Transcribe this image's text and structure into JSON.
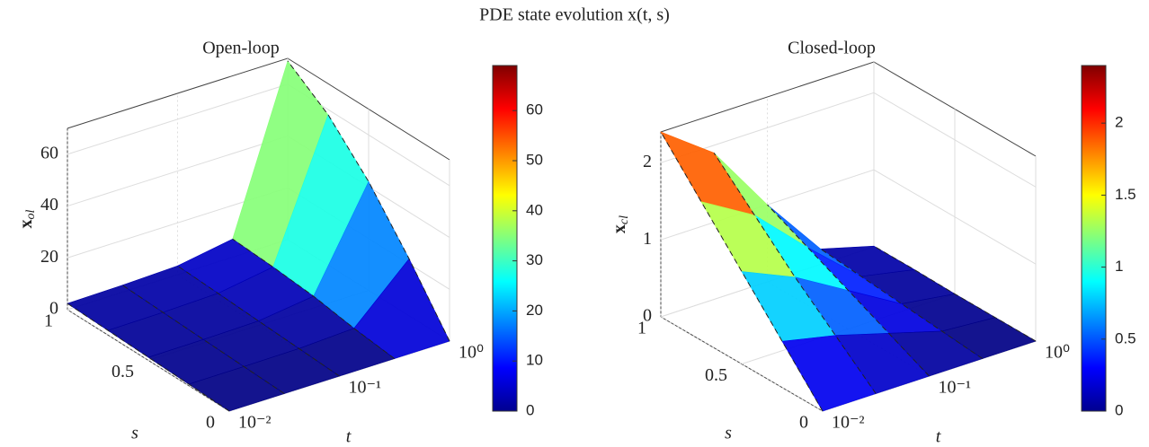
{
  "title": "PDE state evolution x(t, s)",
  "chart_data": [
    {
      "type": "surface",
      "title": "Open-loop",
      "xlabel": "t",
      "ylabel": "s",
      "zlabel": {
        "base": "x",
        "sub": "ol"
      },
      "x": [
        0.01,
        0.0316,
        0.1,
        0.316,
        1
      ],
      "y": [
        0,
        0.25,
        0.5,
        0.75,
        1
      ],
      "z": [
        [
          0,
          0.6,
          1.2,
          1.8,
          2.4
        ],
        [
          0,
          0.65,
          1.3,
          2.0,
          2.7
        ],
        [
          0,
          0.85,
          1.7,
          2.6,
          3.4
        ],
        [
          0,
          1.9,
          4.5,
          6.0,
          7.0
        ],
        [
          0,
          22,
          42,
          58,
          69
        ]
      ],
      "xscale": "log",
      "xlim": [
        0.01,
        1
      ],
      "xticks": [
        {
          "value": 0.01,
          "label": "10⁻²"
        },
        {
          "value": 0.1,
          "label": "10⁻¹"
        },
        {
          "value": 1,
          "label": "10⁰"
        }
      ],
      "ylim": [
        0,
        1
      ],
      "yticks": [
        0,
        0.5,
        1
      ],
      "zlim": [
        0,
        70
      ],
      "zticks": [
        0,
        20,
        40,
        60
      ],
      "colormap": "jet",
      "clim": [
        0,
        69
      ],
      "cticks": [
        0,
        10,
        20,
        30,
        40,
        50,
        60
      ],
      "grid": true
    },
    {
      "type": "surface",
      "title": "Closed-loop",
      "xlabel": "t",
      "ylabel": "s",
      "zlabel": {
        "base": "x",
        "sub": "cl"
      },
      "x": [
        0.01,
        0.0316,
        0.1,
        0.316,
        1
      ],
      "y": [
        0,
        0.25,
        0.5,
        0.75,
        1
      ],
      "z": [
        [
          0,
          0.6,
          1.2,
          1.8,
          2.4
        ],
        [
          0,
          0.45,
          0.9,
          1.4,
          1.9
        ],
        [
          0,
          0.25,
          0.5,
          0.75,
          1.0
        ],
        [
          0,
          0.05,
          0.1,
          0.15,
          0.2
        ],
        [
          0,
          0,
          0,
          0.01,
          0.01
        ]
      ],
      "xscale": "log",
      "xlim": [
        0.01,
        1
      ],
      "xticks": [
        {
          "value": 0.01,
          "label": "10⁻²"
        },
        {
          "value": 0.1,
          "label": "10⁻¹"
        },
        {
          "value": 1,
          "label": "10⁰"
        }
      ],
      "ylim": [
        0,
        1
      ],
      "yticks": [
        0,
        0.5,
        1
      ],
      "zlim": [
        0,
        2.4
      ],
      "zticks": [
        0,
        1,
        2
      ],
      "colormap": "jet",
      "clim": [
        0,
        2.4
      ],
      "cticks": [
        0,
        0.5,
        1,
        1.5,
        2
      ],
      "grid": true
    }
  ]
}
